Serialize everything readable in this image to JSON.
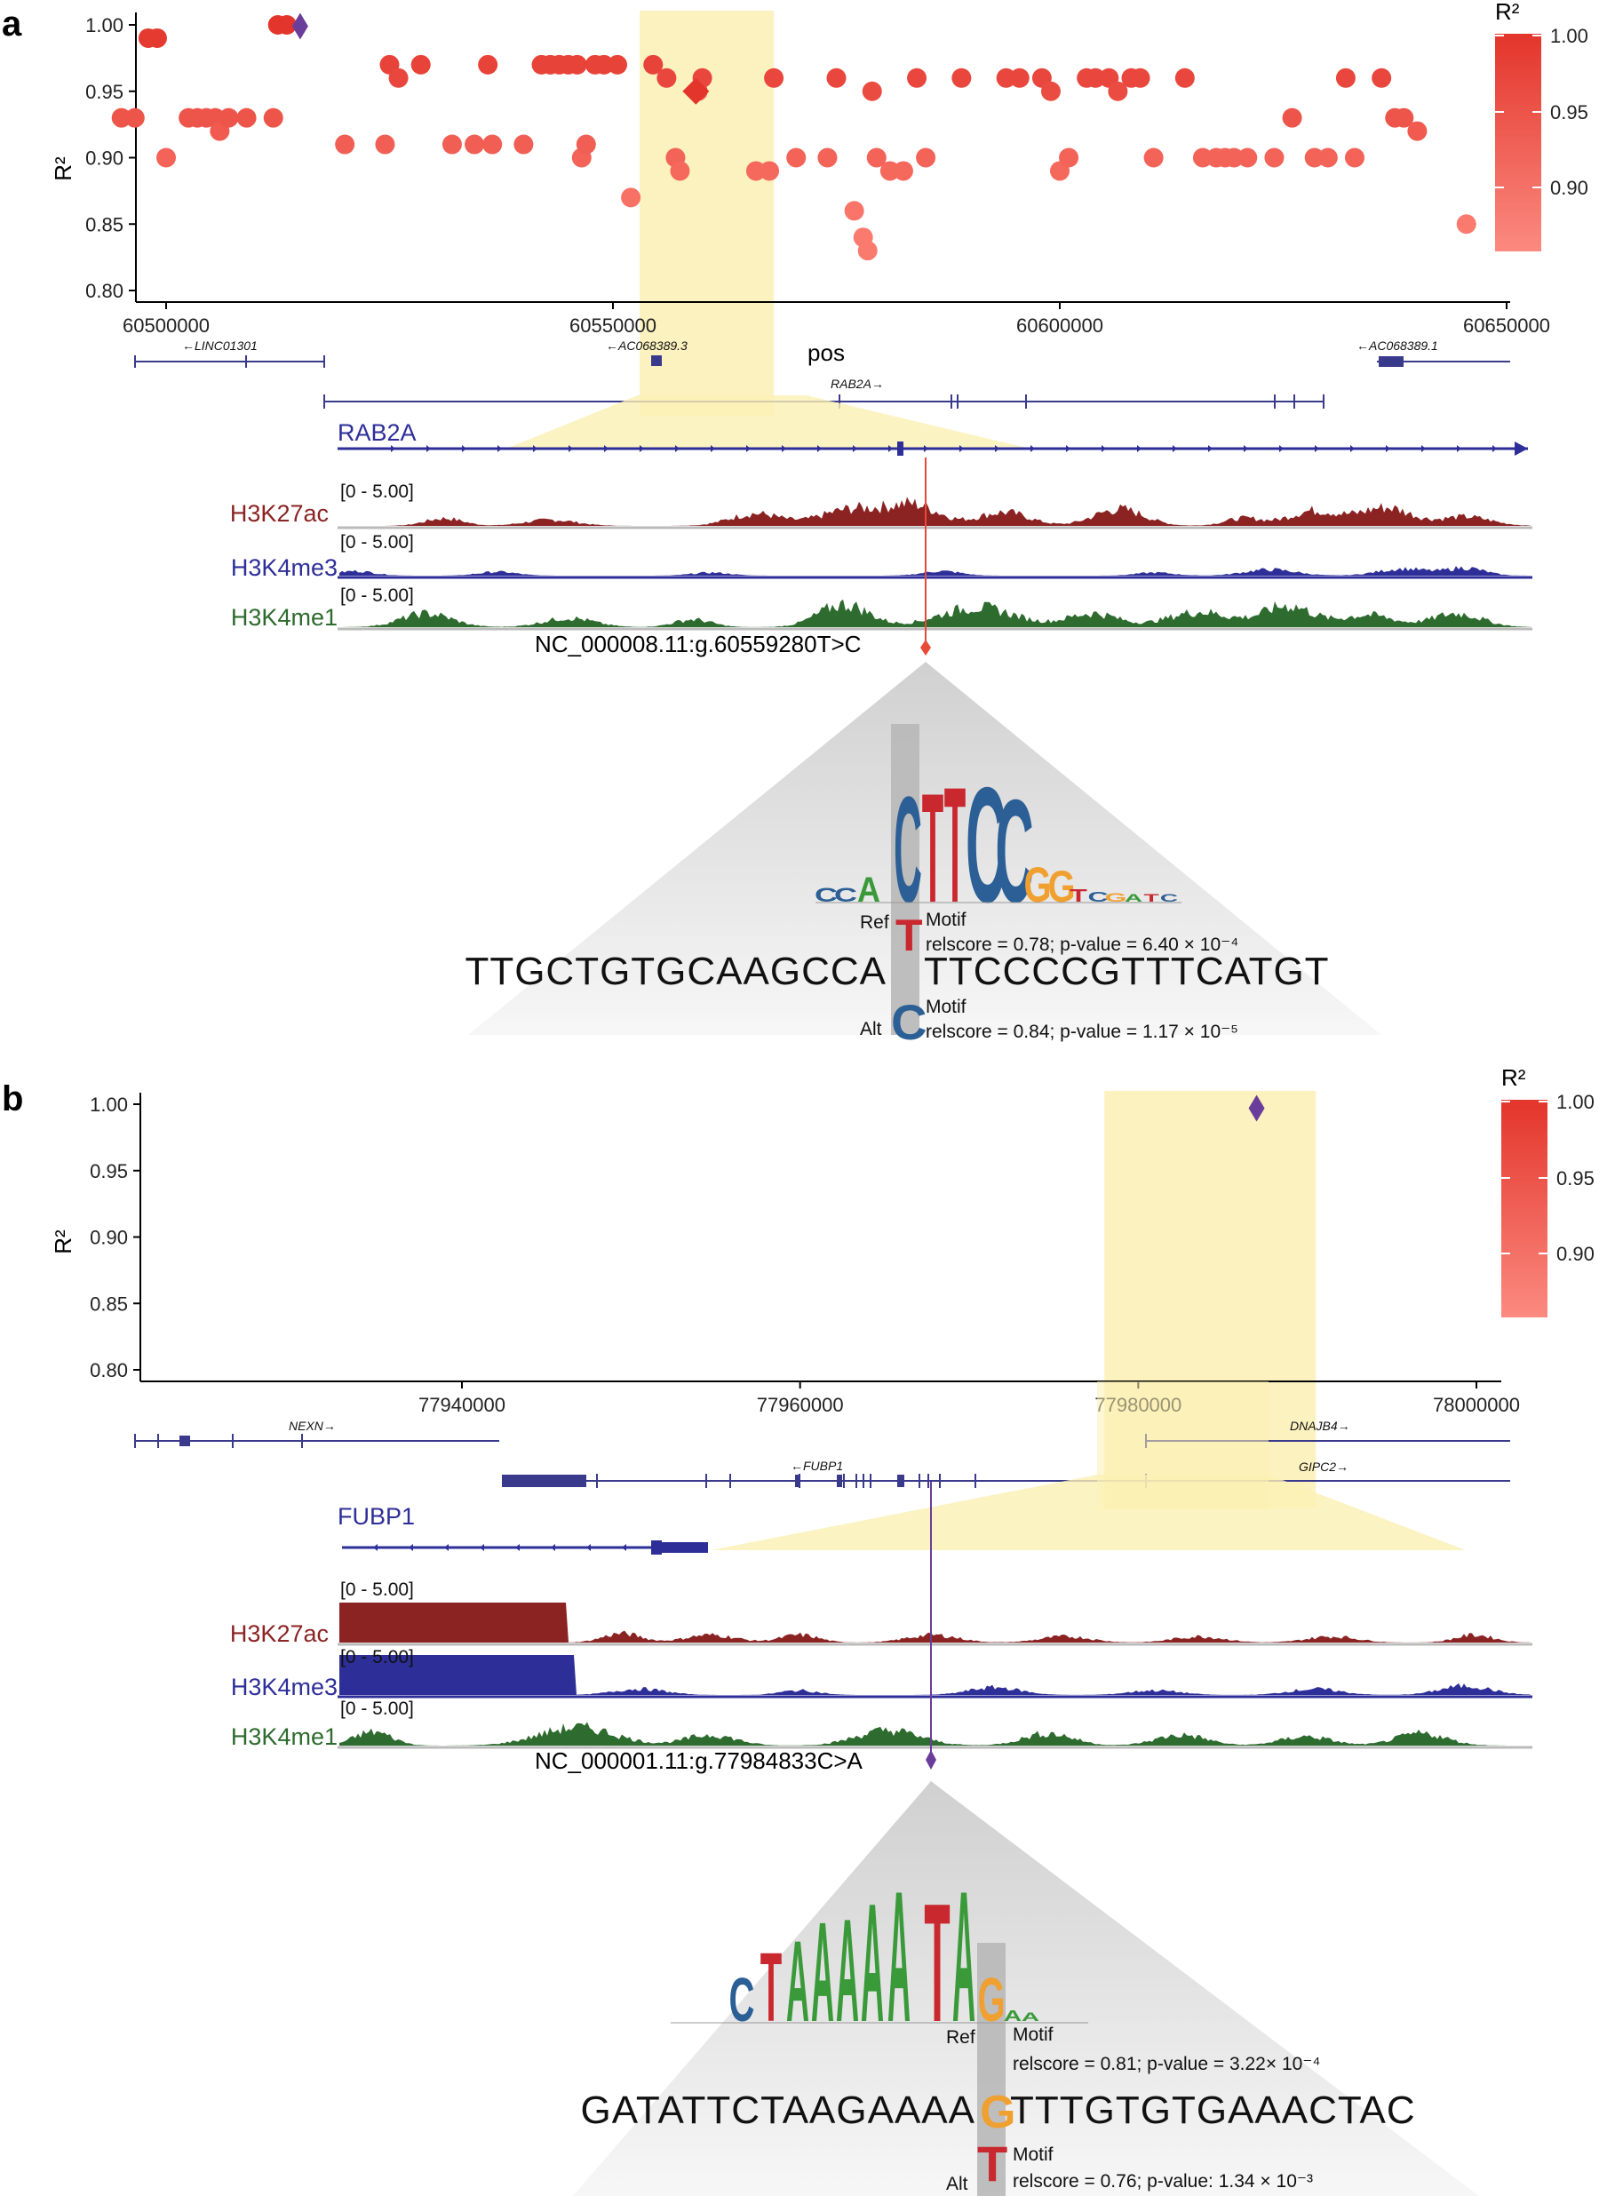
{
  "panels": [
    {
      "letter": "a",
      "xlabel": "pos",
      "ylabel": "R²",
      "legend_title": "R²",
      "legend_ticks": [
        "1.00",
        "0.95",
        "0.90"
      ],
      "gene_labels": [
        "←LINC01301",
        "←AC068389.3",
        "RAB2A→",
        "←AC068389.1"
      ],
      "zoom_gene": "RAB2A",
      "tracks": [
        {
          "name": "H3K27ac",
          "range": "[0 - 5.00]",
          "color": "#8b2323"
        },
        {
          "name": "H3K4me3",
          "range": "[0 - 5.00]",
          "color": "#2e2e99"
        },
        {
          "name": "H3K4me1",
          "range": "[0 - 5.00]",
          "color": "#2e6b2e"
        }
      ],
      "variant": "NC_000008.11:g.60559280T>C",
      "sequence_left": "TTGCTGTGCAAGCCA",
      "sequence_right": "TTCCCCGTTTCATGT",
      "ref_label": "Ref",
      "alt_label": "Alt",
      "ref_base": "T",
      "alt_base": "C",
      "motif_label": "Motif",
      "ref_stats": "relscore = 0.78; p-value = 6.40 × 10⁻⁴",
      "alt_stats": "relscore = 0.84; p-value = 1.17 × 10⁻⁵",
      "logo_letters": [
        "C",
        "C",
        "A",
        "C",
        "T",
        "T",
        "C",
        "C",
        "G",
        "G",
        "T",
        "C",
        "G",
        "A",
        "T",
        "C"
      ]
    },
    {
      "letter": "b",
      "xlabel": "",
      "ylabel": "R²",
      "legend_title": "R²",
      "legend_ticks": [
        "1.00",
        "0.95",
        "0.90"
      ],
      "gene_labels": [
        "NEXN→",
        "←FUBP1",
        "DNAJB4→",
        "GIPC2→"
      ],
      "zoom_gene": "FUBP1",
      "tracks": [
        {
          "name": "H3K27ac",
          "range": "[0 - 5.00]",
          "color": "#8b2323"
        },
        {
          "name": "H3K4me3",
          "range": "[0 - 5.00]",
          "color": "#2e2e99"
        },
        {
          "name": "H3K4me1",
          "range": "[0 - 5.00]",
          "color": "#2e6b2e"
        }
      ],
      "variant": "NC_000001.11:g.77984833C>A",
      "sequence_left": "GATATTCTAAGAAAA",
      "sequence_right": "TTTGTGTGAAACTAC",
      "ref_label": "Ref",
      "alt_label": "Alt",
      "ref_base": "G",
      "alt_base": "T",
      "motif_label": "Motif",
      "ref_stats": "relscore = 0.81; p-value = 3.22× 10⁻⁴",
      "alt_stats": "relscore = 0.76; p-value: 1.34 × 10⁻³",
      "logo_letters": [
        "C",
        "T",
        "A",
        "A",
        "A",
        "A",
        "A",
        "T",
        "A",
        "G",
        "A",
        "A"
      ]
    }
  ],
  "chart_data": [
    {
      "type": "scatter",
      "title": "",
      "xlabel": "pos",
      "ylabel": "R²",
      "xlim": [
        60488000,
        60650000
      ],
      "ylim": [
        0.79,
        1.01
      ],
      "x_ticks": [
        60500000,
        60550000,
        60600000,
        60650000
      ],
      "y_ticks": [
        0.8,
        0.85,
        0.9,
        0.95,
        1.0
      ],
      "highlight_x_range": [
        60553000,
        60568000
      ],
      "lead_variant": {
        "x": 60515000,
        "y": 0.999,
        "shape": "diamond"
      },
      "secondary_variant": {
        "x": 60559280,
        "y": 0.95,
        "shape": "diamond"
      },
      "legend": "top-right",
      "colors": {
        "high": "#e3352b",
        "low": "#fb7a6e",
        "lead": "#6a3d9a",
        "highlight": "#fbf0b4"
      },
      "points": [
        [
          60495000,
          0.93
        ],
        [
          60496500,
          0.93
        ],
        [
          60498000,
          0.99
        ],
        [
          60499000,
          0.99
        ],
        [
          60500000,
          0.9
        ],
        [
          60502500,
          0.93
        ],
        [
          60503500,
          0.93
        ],
        [
          60504500,
          0.93
        ],
        [
          60505500,
          0.93
        ],
        [
          60506000,
          0.92
        ],
        [
          60507000,
          0.93
        ],
        [
          60509000,
          0.93
        ],
        [
          60512000,
          0.93
        ],
        [
          60512500,
          1.0
        ],
        [
          60513500,
          1.0
        ],
        [
          60520000,
          0.91
        ],
        [
          60524500,
          0.91
        ],
        [
          60525000,
          0.97
        ],
        [
          60526000,
          0.96
        ],
        [
          60528500,
          0.97
        ],
        [
          60532000,
          0.91
        ],
        [
          60534500,
          0.91
        ],
        [
          60536000,
          0.97
        ],
        [
          60536500,
          0.91
        ],
        [
          60540000,
          0.91
        ],
        [
          60542000,
          0.97
        ],
        [
          60543000,
          0.97
        ],
        [
          60544000,
          0.97
        ],
        [
          60545000,
          0.97
        ],
        [
          60546000,
          0.97
        ],
        [
          60546500,
          0.9
        ],
        [
          60547000,
          0.91
        ],
        [
          60548000,
          0.97
        ],
        [
          60549000,
          0.97
        ],
        [
          60550500,
          0.97
        ],
        [
          60552000,
          0.87
        ],
        [
          60554500,
          0.97
        ],
        [
          60556000,
          0.96
        ],
        [
          60557000,
          0.9
        ],
        [
          60557500,
          0.89
        ],
        [
          60559500,
          0.95
        ],
        [
          60560000,
          0.96
        ],
        [
          60566000,
          0.89
        ],
        [
          60567500,
          0.89
        ],
        [
          60568000,
          0.96
        ],
        [
          60570500,
          0.9
        ],
        [
          60574000,
          0.9
        ],
        [
          60575000,
          0.96
        ],
        [
          60577000,
          0.86
        ],
        [
          60578000,
          0.84
        ],
        [
          60578500,
          0.83
        ],
        [
          60579000,
          0.95
        ],
        [
          60579500,
          0.9
        ],
        [
          60581000,
          0.89
        ],
        [
          60582500,
          0.89
        ],
        [
          60584000,
          0.96
        ],
        [
          60585000,
          0.9
        ],
        [
          60589000,
          0.96
        ],
        [
          60594000,
          0.96
        ],
        [
          60595500,
          0.96
        ],
        [
          60598000,
          0.96
        ],
        [
          60599000,
          0.95
        ],
        [
          60600000,
          0.89
        ],
        [
          60601000,
          0.9
        ],
        [
          60603000,
          0.96
        ],
        [
          60604000,
          0.96
        ],
        [
          60605500,
          0.96
        ],
        [
          60606500,
          0.95
        ],
        [
          60608000,
          0.96
        ],
        [
          60609000,
          0.96
        ],
        [
          60610500,
          0.9
        ],
        [
          60614000,
          0.96
        ],
        [
          60616000,
          0.9
        ],
        [
          60617500,
          0.9
        ],
        [
          60618500,
          0.9
        ],
        [
          60619500,
          0.9
        ],
        [
          60621000,
          0.9
        ],
        [
          60624000,
          0.9
        ],
        [
          60626000,
          0.93
        ],
        [
          60628500,
          0.9
        ],
        [
          60630000,
          0.9
        ],
        [
          60632000,
          0.96
        ],
        [
          60633000,
          0.9
        ],
        [
          60636000,
          0.96
        ],
        [
          60637500,
          0.93
        ],
        [
          60638500,
          0.93
        ],
        [
          60640000,
          0.92
        ],
        [
          60645500,
          0.85
        ]
      ]
    },
    {
      "type": "scatter",
      "title": "",
      "xlabel": "",
      "ylabel": "R²",
      "xlim": [
        77920000,
        78004000
      ],
      "ylim": [
        0.79,
        1.01
      ],
      "x_ticks": [
        77940000,
        77960000,
        77980000,
        78000000
      ],
      "y_ticks": [
        0.8,
        0.85,
        0.9,
        0.95,
        1.0
      ],
      "highlight_x_range": [
        77978000,
        77990500
      ],
      "lead_variant": {
        "x": 77987000,
        "y": 0.997,
        "shape": "diamond"
      },
      "legend": "top-right",
      "colors": {
        "high": "#e3352b",
        "low": "#fb7a6e",
        "lead": "#6a3d9a",
        "highlight": "#fbf0b4"
      },
      "points": []
    }
  ]
}
